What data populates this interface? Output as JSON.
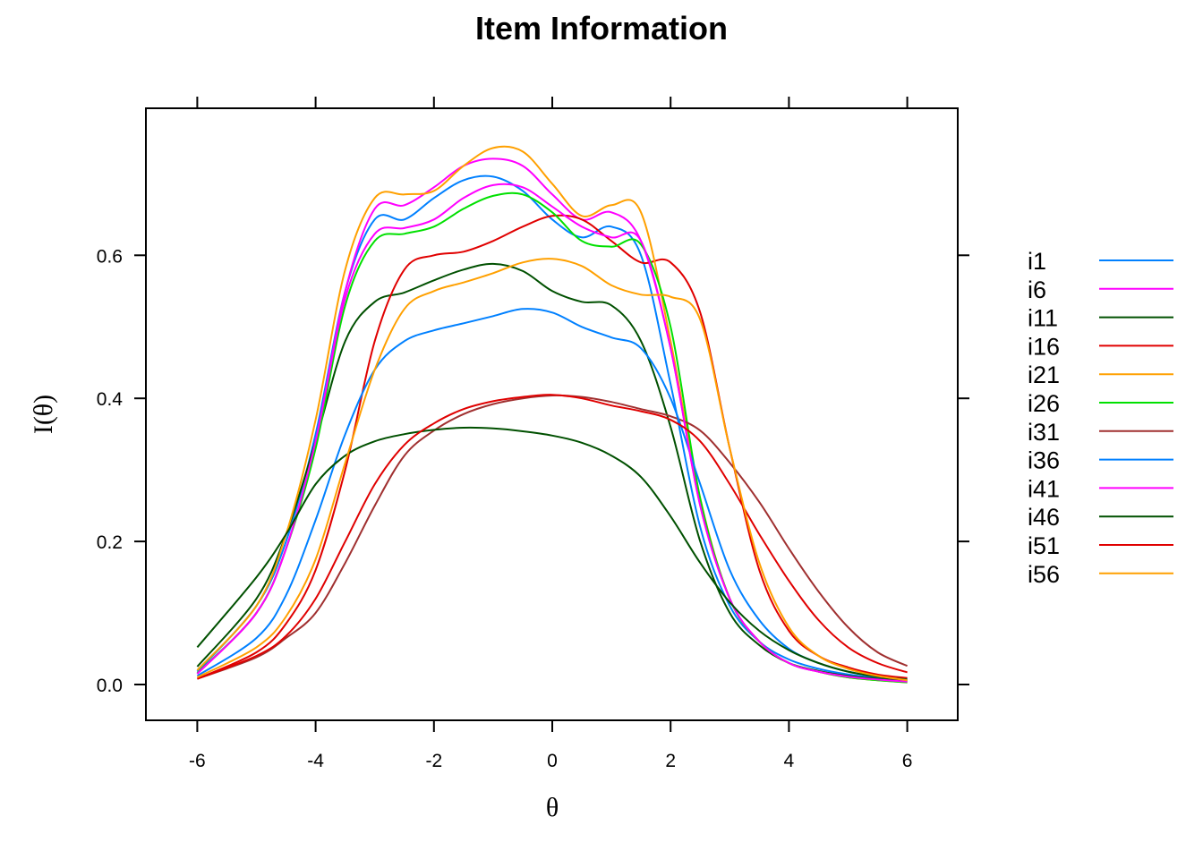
{
  "chart_data": {
    "type": "line",
    "title": "Item Information",
    "xlabel": "θ",
    "ylabel": "I(θ)",
    "xlim": [
      -6,
      6
    ],
    "ylim": [
      0,
      0.75
    ],
    "x_ticks": [
      -6,
      -4,
      -2,
      0,
      2,
      4,
      6
    ],
    "x_tick_labels": [
      "-6",
      "-4",
      "-2",
      "0",
      "2",
      "4",
      "6"
    ],
    "y_ticks": [
      0,
      0.2,
      0.4,
      0.6
    ],
    "y_tick_labels": [
      "0.0",
      "0.2",
      "0.4",
      "0.6"
    ],
    "grid": false,
    "legend_position": "right",
    "x": [
      -6,
      -5,
      -4.5,
      -4,
      -3.5,
      -3,
      -2.5,
      -2,
      -1.5,
      -1,
      -0.5,
      0,
      0.5,
      1,
      1.5,
      2,
      2.5,
      3,
      3.5,
      4,
      4.5,
      5,
      5.5,
      6
    ],
    "series": [
      {
        "name": "i1",
        "color": "#0080FF",
        "values": [
          0.018,
          0.11,
          0.2,
          0.35,
          0.55,
          0.65,
          0.65,
          0.68,
          0.705,
          0.71,
          0.69,
          0.65,
          0.625,
          0.64,
          0.6,
          0.42,
          0.22,
          0.11,
          0.06,
          0.035,
          0.022,
          0.014,
          0.009,
          0.006
        ]
      },
      {
        "name": "i6",
        "color": "#FF00FF",
        "values": [
          0.015,
          0.1,
          0.19,
          0.34,
          0.55,
          0.665,
          0.67,
          0.695,
          0.725,
          0.735,
          0.725,
          0.685,
          0.65,
          0.66,
          0.62,
          0.47,
          0.25,
          0.12,
          0.06,
          0.03,
          0.018,
          0.011,
          0.007,
          0.004
        ]
      },
      {
        "name": "i11",
        "color": "#005000",
        "values": [
          0.025,
          0.12,
          0.21,
          0.34,
          0.48,
          0.535,
          0.548,
          0.565,
          0.58,
          0.588,
          0.578,
          0.55,
          0.535,
          0.53,
          0.48,
          0.36,
          0.2,
          0.1,
          0.055,
          0.03,
          0.019,
          0.012,
          0.008,
          0.005
        ]
      },
      {
        "name": "i16",
        "color": "#E00000",
        "values": [
          0.008,
          0.045,
          0.085,
          0.16,
          0.3,
          0.48,
          0.58,
          0.6,
          0.605,
          0.62,
          0.64,
          0.655,
          0.65,
          0.62,
          0.59,
          0.59,
          0.52,
          0.33,
          0.16,
          0.075,
          0.04,
          0.024,
          0.014,
          0.009
        ]
      },
      {
        "name": "i21",
        "color": "#FFA000",
        "values": [
          0.02,
          0.11,
          0.21,
          0.37,
          0.58,
          0.68,
          0.685,
          0.69,
          0.725,
          0.75,
          0.745,
          0.7,
          0.655,
          0.67,
          0.66,
          0.48,
          0.26,
          0.12,
          0.06,
          0.03,
          0.018,
          0.01,
          0.006,
          0.003
        ]
      },
      {
        "name": "i26",
        "color": "#00E000",
        "values": [
          0.016,
          0.1,
          0.19,
          0.33,
          0.53,
          0.62,
          0.63,
          0.64,
          0.665,
          0.683,
          0.685,
          0.66,
          0.62,
          0.612,
          0.615,
          0.5,
          0.26,
          0.12,
          0.06,
          0.03,
          0.018,
          0.01,
          0.006,
          0.003
        ]
      },
      {
        "name": "i31",
        "color": "#A03030",
        "values": [
          0.008,
          0.038,
          0.065,
          0.1,
          0.17,
          0.25,
          0.32,
          0.355,
          0.378,
          0.392,
          0.4,
          0.404,
          0.402,
          0.395,
          0.385,
          0.375,
          0.355,
          0.31,
          0.255,
          0.19,
          0.13,
          0.08,
          0.045,
          0.026
        ]
      },
      {
        "name": "i36",
        "color": "#0080FF",
        "values": [
          0.012,
          0.065,
          0.125,
          0.23,
          0.35,
          0.44,
          0.48,
          0.495,
          0.505,
          0.515,
          0.525,
          0.52,
          0.5,
          0.485,
          0.47,
          0.4,
          0.28,
          0.16,
          0.09,
          0.05,
          0.03,
          0.018,
          0.011,
          0.007
        ]
      },
      {
        "name": "i41",
        "color": "#FF00FF",
        "values": [
          0.015,
          0.1,
          0.19,
          0.34,
          0.54,
          0.63,
          0.638,
          0.65,
          0.68,
          0.698,
          0.695,
          0.668,
          0.64,
          0.625,
          0.62,
          0.47,
          0.25,
          0.12,
          0.06,
          0.03,
          0.018,
          0.011,
          0.007,
          0.004
        ]
      },
      {
        "name": "i46",
        "color": "#005000",
        "values": [
          0.052,
          0.15,
          0.21,
          0.28,
          0.32,
          0.34,
          0.35,
          0.356,
          0.359,
          0.358,
          0.354,
          0.348,
          0.338,
          0.32,
          0.29,
          0.235,
          0.17,
          0.115,
          0.075,
          0.048,
          0.03,
          0.018,
          0.011,
          0.007
        ]
      },
      {
        "name": "i51",
        "color": "#E00000",
        "values": [
          0.008,
          0.04,
          0.068,
          0.12,
          0.2,
          0.28,
          0.335,
          0.365,
          0.385,
          0.396,
          0.402,
          0.405,
          0.4,
          0.39,
          0.382,
          0.37,
          0.34,
          0.28,
          0.21,
          0.145,
          0.09,
          0.052,
          0.03,
          0.017
        ]
      },
      {
        "name": "i56",
        "color": "#FFA000",
        "values": [
          0.01,
          0.052,
          0.095,
          0.175,
          0.31,
          0.44,
          0.525,
          0.55,
          0.562,
          0.575,
          0.59,
          0.595,
          0.585,
          0.558,
          0.545,
          0.542,
          0.51,
          0.33,
          0.17,
          0.08,
          0.04,
          0.022,
          0.012,
          0.006
        ]
      }
    ]
  }
}
